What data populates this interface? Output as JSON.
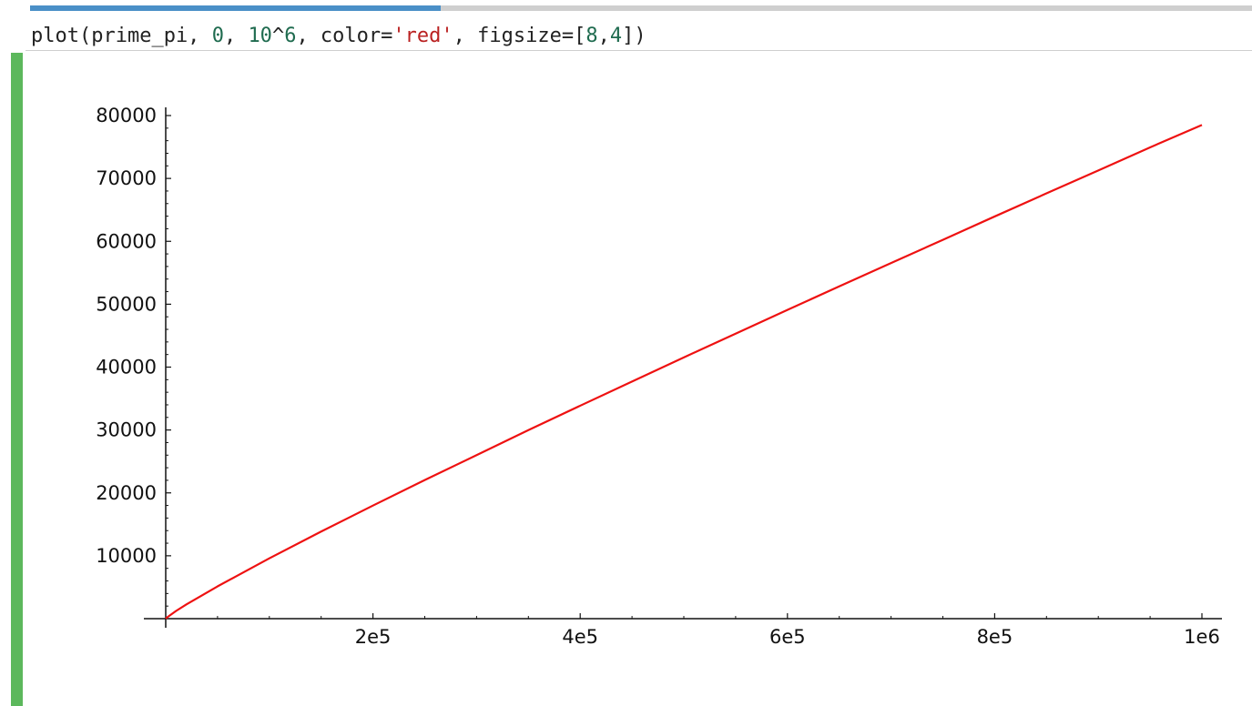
{
  "cell": {
    "progress": 0.336,
    "input": {
      "tokens": [
        {
          "text": "plot(prime_pi, ",
          "kind": "plain"
        },
        {
          "text": "0",
          "kind": "num"
        },
        {
          "text": ", ",
          "kind": "plain"
        },
        {
          "text": "10",
          "kind": "num"
        },
        {
          "text": "^",
          "kind": "plain"
        },
        {
          "text": "6",
          "kind": "num"
        },
        {
          "text": ", color=",
          "kind": "plain"
        },
        {
          "text": "'red'",
          "kind": "str"
        },
        {
          "text": ", figsize=[",
          "kind": "plain"
        },
        {
          "text": "8",
          "kind": "num"
        },
        {
          "text": ",",
          "kind": "plain"
        },
        {
          "text": "4",
          "kind": "num"
        },
        {
          "text": "])",
          "kind": "plain"
        }
      ]
    }
  },
  "colors": {
    "progress_fill": "#4a8fc7",
    "progress_track": "#cfcfcf",
    "output_marker": "#5cb85c",
    "curve": "#ee1111",
    "number_token": "#1f6b4f",
    "string_token": "#ba2121"
  },
  "chart_data": {
    "type": "line",
    "title": "",
    "xlabel": "",
    "ylabel": "",
    "xlim": [
      0,
      1000000
    ],
    "ylim": [
      0,
      80000
    ],
    "x_ticks": [
      200000,
      400000,
      600000,
      800000,
      1000000
    ],
    "x_tick_labels": [
      "2e5",
      "4e5",
      "6e5",
      "8e5",
      "1e6"
    ],
    "y_ticks": [
      10000,
      20000,
      30000,
      40000,
      50000,
      60000,
      70000,
      80000
    ],
    "y_tick_labels": [
      "10000",
      "20000",
      "30000",
      "40000",
      "50000",
      "60000",
      "70000",
      "80000"
    ],
    "grid": false,
    "series": [
      {
        "color": "#ee1111",
        "x": [
          0,
          1000,
          10000,
          20000,
          50000,
          100000,
          150000,
          200000,
          250000,
          300000,
          350000,
          400000,
          450000,
          500000,
          550000,
          600000,
          650000,
          700000,
          750000,
          800000,
          850000,
          900000,
          950000,
          1000000
        ],
        "y": [
          0,
          168,
          1229,
          2262,
          5133,
          9592,
          13848,
          17984,
          22044,
          25997,
          29977,
          33860,
          37706,
          41538,
          45323,
          49098,
          52831,
          56543,
          60238,
          63951,
          67627,
          71274,
          74942,
          78498
        ]
      }
    ]
  }
}
